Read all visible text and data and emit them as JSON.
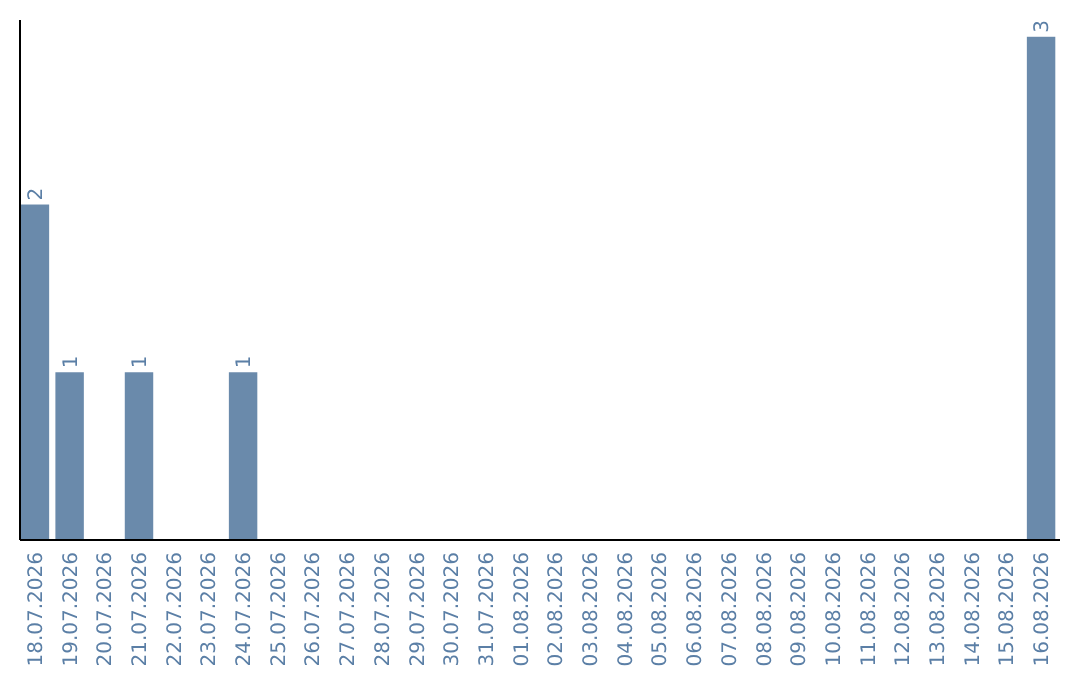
{
  "chart_data": {
    "type": "bar",
    "categories": [
      "18.07.2026",
      "19.07.2026",
      "20.07.2026",
      "21.07.2026",
      "22.07.2026",
      "23.07.2026",
      "24.07.2026",
      "25.07.2026",
      "26.07.2026",
      "27.07.2026",
      "28.07.2026",
      "29.07.2026",
      "30.07.2026",
      "31.07.2026",
      "01.08.2026",
      "02.08.2026",
      "03.08.2026",
      "04.08.2026",
      "05.08.2026",
      "06.08.2026",
      "07.08.2026",
      "08.08.2026",
      "09.08.2026",
      "10.08.2026",
      "11.08.2026",
      "12.08.2026",
      "13.08.2026",
      "14.08.2026",
      "15.08.2026",
      "16.08.2026"
    ],
    "values": [
      2,
      1,
      0,
      1,
      0,
      0,
      1,
      0,
      0,
      0,
      0,
      0,
      0,
      0,
      0,
      0,
      0,
      0,
      0,
      0,
      0,
      0,
      0,
      0,
      0,
      0,
      0,
      0,
      0,
      3
    ],
    "value_labels": [
      "2",
      "1",
      null,
      "1",
      null,
      null,
      "1",
      null,
      null,
      null,
      null,
      null,
      null,
      null,
      null,
      null,
      null,
      null,
      null,
      null,
      null,
      null,
      null,
      null,
      null,
      null,
      null,
      null,
      null,
      "3"
    ],
    "color": "#6a8aab",
    "ylim": [
      0,
      3.1
    ],
    "tick_labels": "x"
  }
}
